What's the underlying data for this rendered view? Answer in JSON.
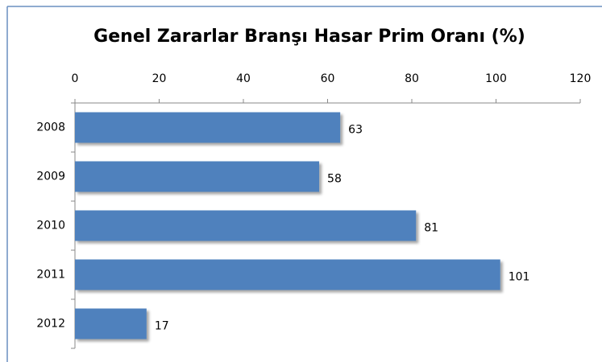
{
  "chart_data": {
    "type": "bar",
    "orientation": "horizontal",
    "title": "Genel Zararlar Branşı Hasar Prim Oranı (%)",
    "categories": [
      "2008",
      "2009",
      "2010",
      "2011",
      "2012"
    ],
    "values": [
      63,
      58,
      81,
      101,
      17
    ],
    "color": "#4f81bd",
    "xlim": [
      0,
      120
    ],
    "xticks": [
      0,
      20,
      40,
      60,
      80,
      100,
      120
    ],
    "grid": false
  }
}
